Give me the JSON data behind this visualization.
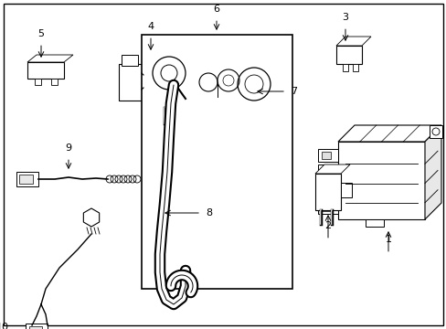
{
  "background_color": "#ffffff",
  "line_color": "#000000",
  "text_color": "#000000",
  "figsize": [
    4.89,
    3.6
  ],
  "dpi": 100
}
